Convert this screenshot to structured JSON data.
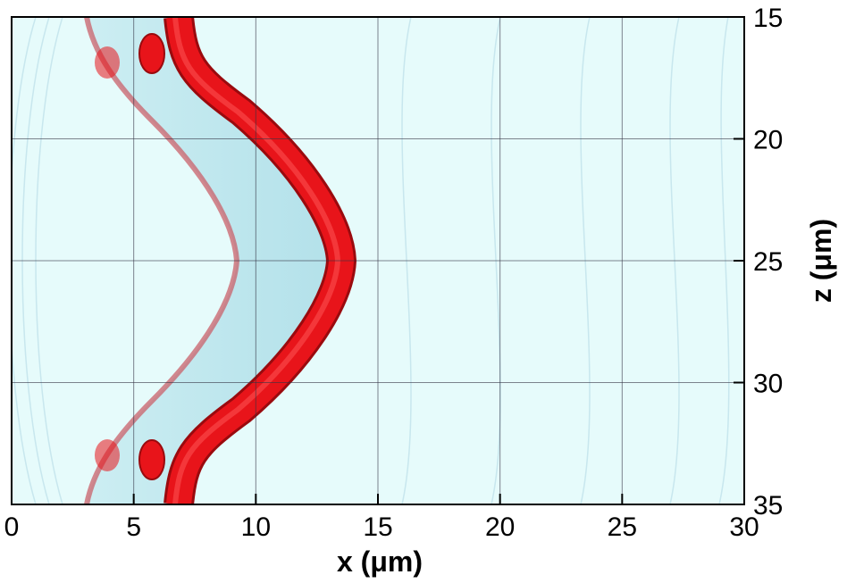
{
  "chart_data": {
    "type": "isosurface",
    "xlabel": "x (μm)",
    "ylabel": "z (μm)",
    "xlim": [
      0,
      30
    ],
    "xticks": [
      0,
      5,
      10,
      15,
      20,
      25,
      30
    ],
    "ylim": [
      15,
      35
    ],
    "yticks": [
      15,
      20,
      25,
      30,
      35
    ],
    "y_inverted": true,
    "y_axis_side": "right",
    "grid": true,
    "surface_color": "#e8141a",
    "background_color": "#e6fbfb"
  }
}
